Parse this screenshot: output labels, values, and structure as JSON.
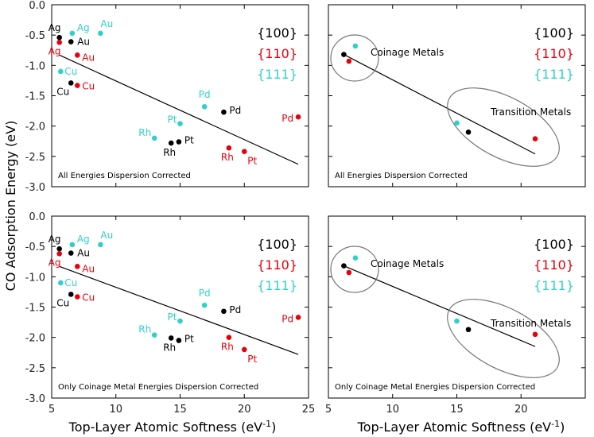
{
  "colors": {
    "100": "#000000",
    "110": "#e8000b",
    "111": "#2ed1c8",
    "ellipse": "#777777"
  },
  "chart_data": {
    "type": "scatter",
    "ylabel": "CO Adsorption Energy (eV)",
    "xlabel": "Top-Layer Atomic Softness (eV",
    "xlabel_sup": "-1",
    "xlabel_close": ")",
    "legend": [
      "{100}",
      "{110}",
      "{111}"
    ],
    "y_ticks": [
      "0.0",
      "-0.5",
      "-1.0",
      "-1.5",
      "-2.0",
      "-2.5",
      "-3.0"
    ],
    "x_ticks": [
      "5",
      "10",
      "15",
      "20",
      "25"
    ],
    "x_ticks_right": [
      "5",
      "10",
      "15",
      "20"
    ],
    "xlim": [
      5,
      25
    ],
    "ylim": [
      -3.0,
      0.0
    ],
    "panels": [
      {
        "id": "top-left",
        "note": "All Energies Dispersion Corrected",
        "fit_line": [
          [
            5.6,
            -0.83
          ],
          [
            24.2,
            -2.63
          ]
        ],
        "points": [
          {
            "label": "Ag",
            "facet": "100",
            "x": 5.6,
            "y": -0.54
          },
          {
            "label": "Au",
            "facet": "100",
            "x": 6.5,
            "y": -0.61
          },
          {
            "label": "Cu",
            "facet": "100",
            "x": 6.5,
            "y": -1.29
          },
          {
            "label": "Rh",
            "facet": "100",
            "x": 14.3,
            "y": -2.28
          },
          {
            "label": "Pt",
            "facet": "100",
            "x": 14.9,
            "y": -2.26
          },
          {
            "label": "Pd",
            "facet": "100",
            "x": 18.4,
            "y": -1.77
          },
          {
            "label": "Ag",
            "facet": "110",
            "x": 5.6,
            "y": -0.62
          },
          {
            "label": "Au",
            "facet": "110",
            "x": 7.0,
            "y": -0.83
          },
          {
            "label": "Cu",
            "facet": "110",
            "x": 7.0,
            "y": -1.33
          },
          {
            "label": "Rh",
            "facet": "110",
            "x": 18.8,
            "y": -2.36
          },
          {
            "label": "Pt",
            "facet": "110",
            "x": 20.0,
            "y": -2.42
          },
          {
            "label": "Pd",
            "facet": "110",
            "x": 24.2,
            "y": -1.85
          },
          {
            "label": "Ag",
            "facet": "111",
            "x": 6.6,
            "y": -0.47
          },
          {
            "label": "Au",
            "facet": "111",
            "x": 8.8,
            "y": -0.47
          },
          {
            "label": "Cu",
            "facet": "111",
            "x": 5.7,
            "y": -1.1
          },
          {
            "label": "Rh",
            "facet": "111",
            "x": 13.0,
            "y": -2.2
          },
          {
            "label": "Pt",
            "facet": "111",
            "x": 15.0,
            "y": -1.96
          },
          {
            "label": "Pd",
            "facet": "111",
            "x": 16.9,
            "y": -1.68
          }
        ]
      },
      {
        "id": "top-right",
        "note": "All Energies Dispersion Corrected",
        "group_labels": [
          "Coinage Metals",
          "Transition Metals"
        ],
        "fit_line": [
          [
            6.2,
            -0.82
          ],
          [
            21.1,
            -2.46
          ]
        ],
        "points": [
          {
            "facet": "100",
            "x": 6.2,
            "y": -0.82
          },
          {
            "facet": "110",
            "x": 6.6,
            "y": -0.93
          },
          {
            "facet": "111",
            "x": 7.1,
            "y": -0.68
          },
          {
            "facet": "111",
            "x": 15.0,
            "y": -1.95
          },
          {
            "facet": "100",
            "x": 15.9,
            "y": -2.1
          },
          {
            "facet": "110",
            "x": 21.1,
            "y": -2.21
          }
        ]
      },
      {
        "id": "bottom-left",
        "note": "Only Coinage Metal Energies Dispersion Corrected",
        "fit_line": [
          [
            5.6,
            -0.83
          ],
          [
            24.2,
            -2.28
          ]
        ],
        "points": [
          {
            "label": "Ag",
            "facet": "100",
            "x": 5.6,
            "y": -0.54
          },
          {
            "label": "Au",
            "facet": "100",
            "x": 6.5,
            "y": -0.61
          },
          {
            "label": "Cu",
            "facet": "100",
            "x": 6.5,
            "y": -1.29
          },
          {
            "label": "Rh",
            "facet": "100",
            "x": 14.3,
            "y": -2.01
          },
          {
            "label": "Pt",
            "facet": "100",
            "x": 14.9,
            "y": -2.05
          },
          {
            "label": "Pd",
            "facet": "100",
            "x": 18.4,
            "y": -1.57
          },
          {
            "label": "Ag",
            "facet": "110",
            "x": 5.6,
            "y": -0.62
          },
          {
            "label": "Au",
            "facet": "110",
            "x": 7.0,
            "y": -0.83
          },
          {
            "label": "Cu",
            "facet": "110",
            "x": 7.0,
            "y": -1.33
          },
          {
            "label": "Rh",
            "facet": "110",
            "x": 18.8,
            "y": -2.0
          },
          {
            "label": "Pt",
            "facet": "110",
            "x": 20.0,
            "y": -2.2
          },
          {
            "label": "Pd",
            "facet": "110",
            "x": 24.2,
            "y": -1.67
          },
          {
            "label": "Ag",
            "facet": "111",
            "x": 6.6,
            "y": -0.47
          },
          {
            "label": "Au",
            "facet": "111",
            "x": 8.8,
            "y": -0.47
          },
          {
            "label": "Cu",
            "facet": "111",
            "x": 5.7,
            "y": -1.1
          },
          {
            "label": "Rh",
            "facet": "111",
            "x": 13.0,
            "y": -1.96
          },
          {
            "label": "Pt",
            "facet": "111",
            "x": 15.0,
            "y": -1.73
          },
          {
            "label": "Pd",
            "facet": "111",
            "x": 16.9,
            "y": -1.47
          }
        ]
      },
      {
        "id": "bottom-right",
        "note": "Only Coinage Metal Energies Dispersion Corrected",
        "group_labels": [
          "Coinage Metals",
          "Transition Metals"
        ],
        "fit_line": [
          [
            6.2,
            -0.82
          ],
          [
            21.1,
            -2.15
          ]
        ],
        "points": [
          {
            "facet": "100",
            "x": 6.2,
            "y": -0.82
          },
          {
            "facet": "110",
            "x": 6.6,
            "y": -0.93
          },
          {
            "facet": "111",
            "x": 7.1,
            "y": -0.69
          },
          {
            "facet": "111",
            "x": 15.0,
            "y": -1.73
          },
          {
            "facet": "100",
            "x": 15.9,
            "y": -1.87
          },
          {
            "facet": "110",
            "x": 21.1,
            "y": -1.95
          }
        ]
      }
    ]
  }
}
